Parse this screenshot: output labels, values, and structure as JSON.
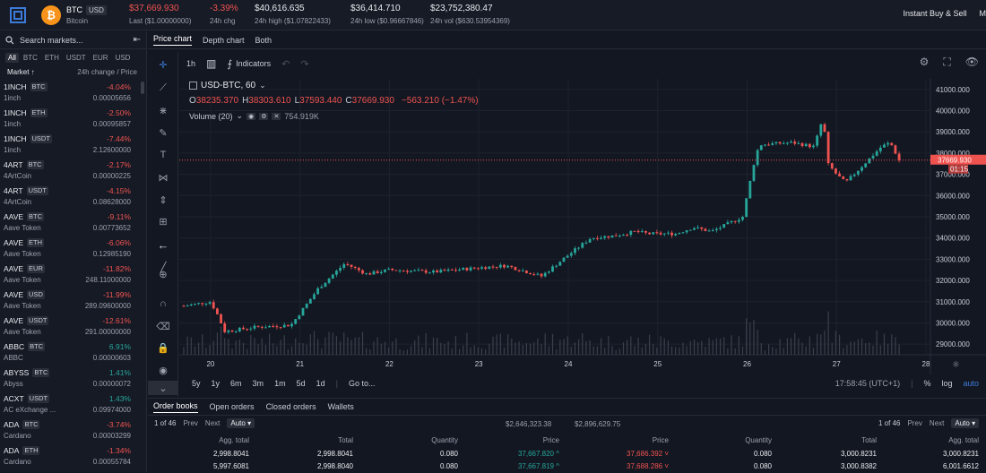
{
  "header": {
    "base": "BTC",
    "quote": "USD",
    "name": "Bitcoin",
    "coin_glyph": "₿",
    "coin_color": "#f7931a",
    "stats": [
      {
        "value": "$37,669.930",
        "label": "Last ($1.00000000)",
        "tone": "red"
      },
      {
        "value": "-3.39%",
        "label": "24h chg",
        "tone": "red"
      },
      {
        "value": "$40,616.635",
        "label": "24h high ($1.07822433)",
        "tone": "none"
      },
      {
        "value": "$36,414.710",
        "label": "24h low ($0.96667846)",
        "tone": "none"
      },
      {
        "value": "$23,752,380.47",
        "label": "24h vol ($630.53954369)",
        "tone": "none"
      }
    ],
    "right_links": [
      "Instant Buy & Sell",
      "M"
    ]
  },
  "sidebar": {
    "search_placeholder": "Search markets...",
    "filters": [
      "All",
      "BTC",
      "ETH",
      "USDT",
      "EUR",
      "USD"
    ],
    "col_market": "Market ↑",
    "col_change": "24h change / Price",
    "markets": [
      {
        "base": "1INCH",
        "quote": "BTC",
        "name": "1inch",
        "change": "-4.04%",
        "price": "0.00005656",
        "up": false
      },
      {
        "base": "1INCH",
        "quote": "ETH",
        "name": "1inch",
        "change": "-2.50%",
        "price": "0.00095857",
        "up": false
      },
      {
        "base": "1INCH",
        "quote": "USDT",
        "name": "1inch",
        "change": "-7.44%",
        "price": "2.12600000",
        "up": false
      },
      {
        "base": "4ART",
        "quote": "BTC",
        "name": "4ArtCoin",
        "change": "-2.17%",
        "price": "0.00000225",
        "up": false
      },
      {
        "base": "4ART",
        "quote": "USDT",
        "name": "4ArtCoin",
        "change": "-4.15%",
        "price": "0.08628000",
        "up": false
      },
      {
        "base": "AAVE",
        "quote": "BTC",
        "name": "Aave Token",
        "change": "-9.11%",
        "price": "0.00773652",
        "up": false
      },
      {
        "base": "AAVE",
        "quote": "ETH",
        "name": "Aave Token",
        "change": "-6.06%",
        "price": "0.12985190",
        "up": false
      },
      {
        "base": "AAVE",
        "quote": "EUR",
        "name": "Aave Token",
        "change": "-11.82%",
        "price": "248.11000000",
        "up": false
      },
      {
        "base": "AAVE",
        "quote": "USD",
        "name": "Aave Token",
        "change": "-11.99%",
        "price": "289.09600000",
        "up": false
      },
      {
        "base": "AAVE",
        "quote": "USDT",
        "name": "Aave Token",
        "change": "-12.61%",
        "price": "291.00000000",
        "up": false
      },
      {
        "base": "ABBC",
        "quote": "BTC",
        "name": "ABBC",
        "change": "6.91%",
        "price": "0.00000603",
        "up": true
      },
      {
        "base": "ABYSS",
        "quote": "BTC",
        "name": "Abyss",
        "change": "1.41%",
        "price": "0.00000072",
        "up": true
      },
      {
        "base": "ACXT",
        "quote": "USDT",
        "name": "AC eXchange ...",
        "change": "1.43%",
        "price": "0.09974000",
        "up": true
      },
      {
        "base": "ADA",
        "quote": "BTC",
        "name": "Cardano",
        "change": "-3.74%",
        "price": "0.00003299",
        "up": false
      },
      {
        "base": "ADA",
        "quote": "ETH",
        "name": "Cardano",
        "change": "-1.34%",
        "price": "0.00055784",
        "up": false
      }
    ]
  },
  "chart_tabs": [
    "Price chart",
    "Depth chart",
    "Both"
  ],
  "toolbar": {
    "interval": "1h",
    "indicators": "Indicators"
  },
  "legend": {
    "symbol": "USD-BTC, 60",
    "o": "38235.370",
    "h": "38303.610",
    "l": "37593.440",
    "c": "37669.930",
    "change": "−563.210 (−1.47%)",
    "volume_label": "Volume (20)",
    "volume_value": "754.919K"
  },
  "chart_data": {
    "type": "line",
    "title": "",
    "xlabel": "",
    "ylabel": "",
    "x": [
      19.7,
      20.0,
      20.1,
      20.15,
      20.5,
      20.9,
      21.2,
      21.5,
      21.75,
      22.0,
      22.5,
      23.0,
      23.3,
      23.7,
      24.0,
      24.25,
      24.5,
      24.75,
      24.9,
      25.2,
      25.4,
      25.6,
      25.95,
      26.1,
      26.15,
      26.5,
      26.75,
      26.85,
      26.9,
      27.0,
      27.1,
      27.5,
      27.6,
      27.7
    ],
    "close": [
      30800,
      31000,
      30200,
      29600,
      29800,
      29900,
      31600,
      32800,
      32300,
      32500,
      32400,
      32600,
      32700,
      32200,
      33200,
      34000,
      34100,
      34300,
      34200,
      34200,
      34500,
      34300,
      35000,
      38000,
      38400,
      38500,
      38300,
      39700,
      37500,
      37000,
      36600,
      38300,
      38500,
      37670
    ],
    "x_ticks": [
      "20",
      "21",
      "22",
      "23",
      "24",
      "25",
      "26",
      "27",
      "28"
    ],
    "y_ticks": [
      "41000.000",
      "40000.000",
      "39000.000",
      "38000.000",
      "37000.000",
      "36000.000",
      "35000.000",
      "34000.000",
      "33000.000",
      "32000.000",
      "31000.000",
      "30000.000",
      "29000.000"
    ],
    "y_range": [
      28500,
      41500
    ],
    "x_range": [
      19.65,
      28.05
    ],
    "last_price": "37669.930",
    "countdown": "01:15",
    "up_color": "#26a69a",
    "down_color": "#ef5350"
  },
  "range_bar": {
    "ranges": [
      "5y",
      "1y",
      "6m",
      "3m",
      "1m",
      "5d",
      "1d"
    ],
    "goto": "Go to...",
    "time": "17:58:45 (UTC+1)",
    "percent": "%",
    "log": "log",
    "auto": "auto"
  },
  "bottom_tabs": [
    "Order books",
    "Open orders",
    "Closed orders",
    "Wallets"
  ],
  "orderbook": {
    "pager": {
      "page": "1 of 46",
      "prev": "Prev",
      "next": "Next",
      "select": "Auto"
    },
    "totals": [
      "$2,646,323.38",
      "$2,896,629.75"
    ],
    "headers_bid": [
      "Agg. total",
      "Total",
      "Quantity",
      "Price"
    ],
    "headers_ask": [
      "Price",
      "Quantity",
      "Total",
      "Agg. total"
    ],
    "bids": [
      {
        "agg": "2,998.8041",
        "total": "2,998.8041",
        "qty": "0.080",
        "price": "37,667.820"
      },
      {
        "agg": "5,997.6081",
        "total": "2,998.8040",
        "qty": "0.080",
        "price": "37,667.819"
      }
    ],
    "asks": [
      {
        "price": "37,686.392",
        "qty": "0.080",
        "total": "3,000.8231",
        "agg": "3,000.8231"
      },
      {
        "price": "37,688.286",
        "qty": "0.080",
        "total": "3,000.8382",
        "agg": "6,001.6612"
      }
    ]
  }
}
